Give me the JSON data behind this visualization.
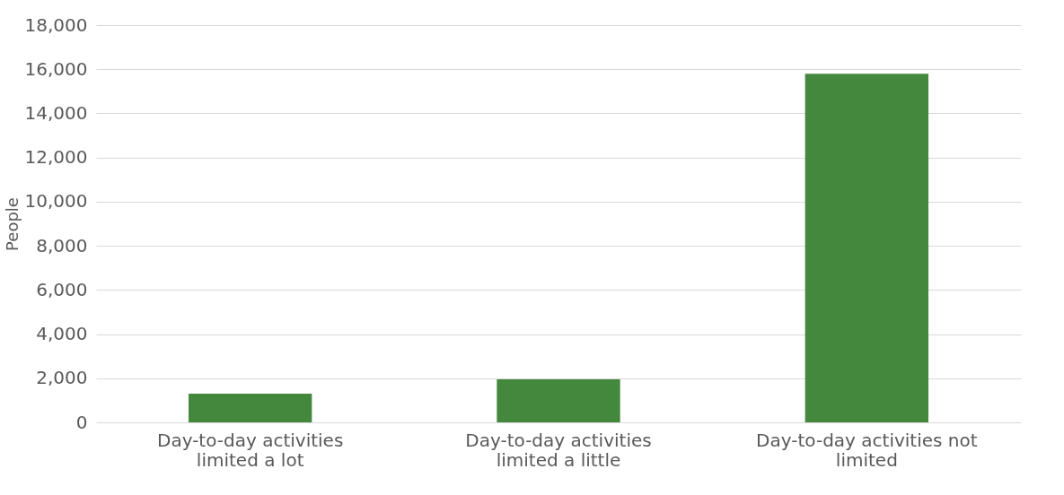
{
  "chart_data": {
    "type": "bar",
    "ylabel": "People",
    "categories": [
      "Day-to-day activities limited a lot",
      "Day-to-day activities limited a little",
      "Day-to-day activities not limited"
    ],
    "values": [
      1300,
      1950,
      15800
    ],
    "color": "#44883e",
    "ylim": [
      0,
      18000
    ],
    "yticks": [
      0,
      {
        "value": 2000,
        "label": "2,000"
      },
      {
        "value": 4000,
        "label": "4,000"
      },
      {
        "value": 6000,
        "label": "6,000"
      },
      {
        "value": 8000,
        "label": "8,000"
      },
      {
        "value": 10000,
        "label": "10,000"
      },
      {
        "value": 12000,
        "label": "12,000"
      },
      {
        "value": 14000,
        "label": "14,000"
      },
      {
        "value": 16000,
        "label": "16,000"
      },
      {
        "value": 18000,
        "label": "18,000"
      }
    ],
    "grid": "y"
  }
}
